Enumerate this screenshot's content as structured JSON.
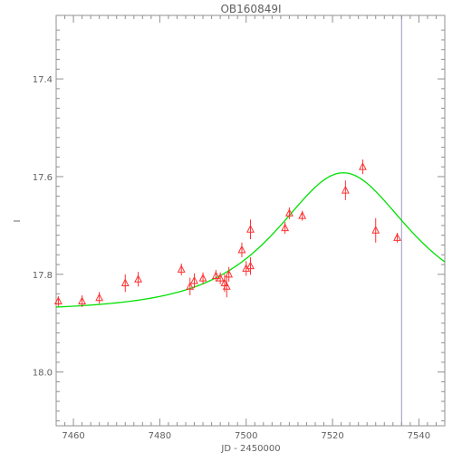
{
  "chart_data": {
    "type": "scatter",
    "title": "OB160849I",
    "xlabel": "JD - 2450000",
    "ylabel": "I",
    "xlim": [
      7456,
      7546
    ],
    "ylim": [
      18.11,
      17.27
    ],
    "y_inverted": true,
    "grid": false,
    "x_ticks": [
      7460,
      7480,
      7500,
      7520,
      7540
    ],
    "y_ticks": [
      17.4,
      17.6,
      17.8,
      18.0
    ],
    "x_tick_labels": [
      "7460",
      "7480",
      "7500",
      "7520",
      "7540"
    ],
    "y_tick_labels": [
      "17.4",
      "17.6",
      "17.8",
      "18.0"
    ],
    "colors": {
      "points": "#ff3030",
      "model": "#00e000",
      "marker_line": "#a8a8cc",
      "axes": "#909090"
    },
    "marker_line_x": 7536,
    "series": [
      {
        "type": "scatter",
        "marker": "triangle-open",
        "x": [
          7456.5,
          7462,
          7466,
          7472,
          7475,
          7485,
          7487,
          7488,
          7490,
          7493,
          7494,
          7495,
          7495.5,
          7496,
          7499,
          7500,
          7501,
          7501,
          7509,
          7510,
          7513,
          7523,
          7527,
          7530,
          7535
        ],
        "y": [
          17.855,
          17.855,
          17.848,
          17.818,
          17.81,
          17.79,
          17.825,
          17.813,
          17.808,
          17.803,
          17.808,
          17.818,
          17.825,
          17.8,
          17.75,
          17.788,
          17.783,
          17.708,
          17.705,
          17.675,
          17.68,
          17.628,
          17.58,
          17.71,
          17.725
        ],
        "err": [
          0.01,
          0.012,
          0.012,
          0.018,
          0.015,
          0.012,
          0.018,
          0.015,
          0.012,
          0.012,
          0.012,
          0.018,
          0.022,
          0.015,
          0.015,
          0.015,
          0.018,
          0.02,
          0.012,
          0.012,
          0.01,
          0.02,
          0.015,
          0.025,
          0.01
        ]
      },
      {
        "type": "line",
        "model": {
          "t0": 7522.5,
          "tE": 20,
          "u0": 0.9,
          "base": 17.875
        },
        "x_range": [
          7456,
          7546
        ]
      }
    ]
  }
}
